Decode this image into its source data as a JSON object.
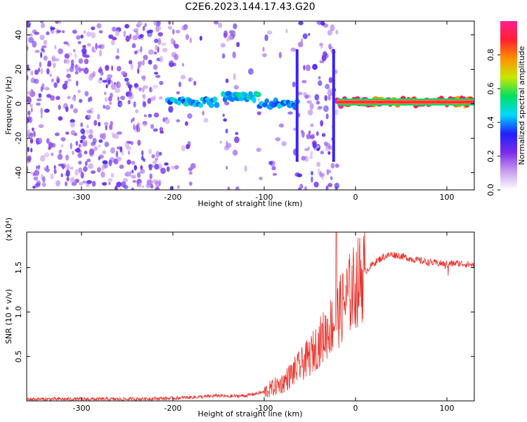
{
  "title": "C2E6.2023.144.17.43.G20",
  "chart_data": [
    {
      "type": "heatmap",
      "xlabel": "Height of straight line (km)",
      "ylabel": "Frequency (Hz)",
      "xlim": [
        -360,
        130
      ],
      "ylim": [
        -50,
        48
      ],
      "x_ticks": [
        -300,
        -200,
        -100,
        0,
        100
      ],
      "y_ticks": [
        -40,
        -20,
        0,
        20,
        40
      ],
      "x_tick_labels": [
        "-300",
        "-200",
        "-100",
        "0",
        "100"
      ],
      "y_tick_labels": [
        "-40",
        "-20",
        "0",
        "20",
        "40"
      ],
      "colorbar": {
        "label": "Normalized spectral amplitude",
        "range": [
          0,
          1
        ],
        "ticks": [
          0.0,
          0.2,
          0.4,
          0.6,
          0.8
        ],
        "tick_labels": [
          "0.0",
          "0.2",
          "0.4",
          "0.6",
          "0.8"
        ],
        "colors": [
          "#ffffff",
          "#c89cf0",
          "#7a2ce8",
          "#2020ff",
          "#00d8ff",
          "#00e060",
          "#c8e800",
          "#ff9000",
          "#ff2030",
          "#ff2090"
        ]
      },
      "signal_band": {
        "segments": [
          {
            "x_start": -205,
            "x_end": -150,
            "freq": 1,
            "amplitude": 0.45
          },
          {
            "x_start": -145,
            "x_end": -105,
            "freq": 4,
            "amplitude": 0.5
          },
          {
            "x_start": -105,
            "x_end": -62,
            "freq": 0,
            "amplitude": 0.45
          },
          {
            "x_start": -20,
            "x_end": 130,
            "freq": 1,
            "amplitude": 0.95
          }
        ],
        "vertical_streaks": [
          -64,
          -24
        ]
      }
    },
    {
      "type": "line",
      "xlabel": "Height of straight line (km)",
      "ylabel": "SNR (10 * v/v)",
      "y_scale_label": "(x10⁴)",
      "xlim": [
        -360,
        130
      ],
      "ylim": [
        0,
        1.9
      ],
      "x_ticks": [
        -300,
        -200,
        -100,
        0,
        100
      ],
      "y_ticks": [
        0.5,
        1.0,
        1.5
      ],
      "x_tick_labels": [
        "-300",
        "-200",
        "-100",
        "0",
        "100"
      ],
      "y_tick_labels": [
        "0.5",
        "1.0",
        "1.5"
      ],
      "color": "#e8312a",
      "x": [
        -360,
        -300,
        -250,
        -200,
        -180,
        -160,
        -150,
        -140,
        -120,
        -100,
        -90,
        -80,
        -70,
        -60,
        -50,
        -40,
        -30,
        -20,
        -10,
        0,
        10,
        20,
        30,
        40,
        50,
        60,
        70,
        80,
        90,
        100,
        110,
        120,
        130
      ],
      "y": [
        0.02,
        0.02,
        0.02,
        0.03,
        0.04,
        0.05,
        0.06,
        0.05,
        0.06,
        0.1,
        0.15,
        0.2,
        0.3,
        0.4,
        0.5,
        0.65,
        0.8,
        0.95,
        1.15,
        1.3,
        1.45,
        1.55,
        1.62,
        1.65,
        1.63,
        1.6,
        1.58,
        1.56,
        1.55,
        1.54,
        1.55,
        1.54,
        1.53
      ]
    }
  ]
}
